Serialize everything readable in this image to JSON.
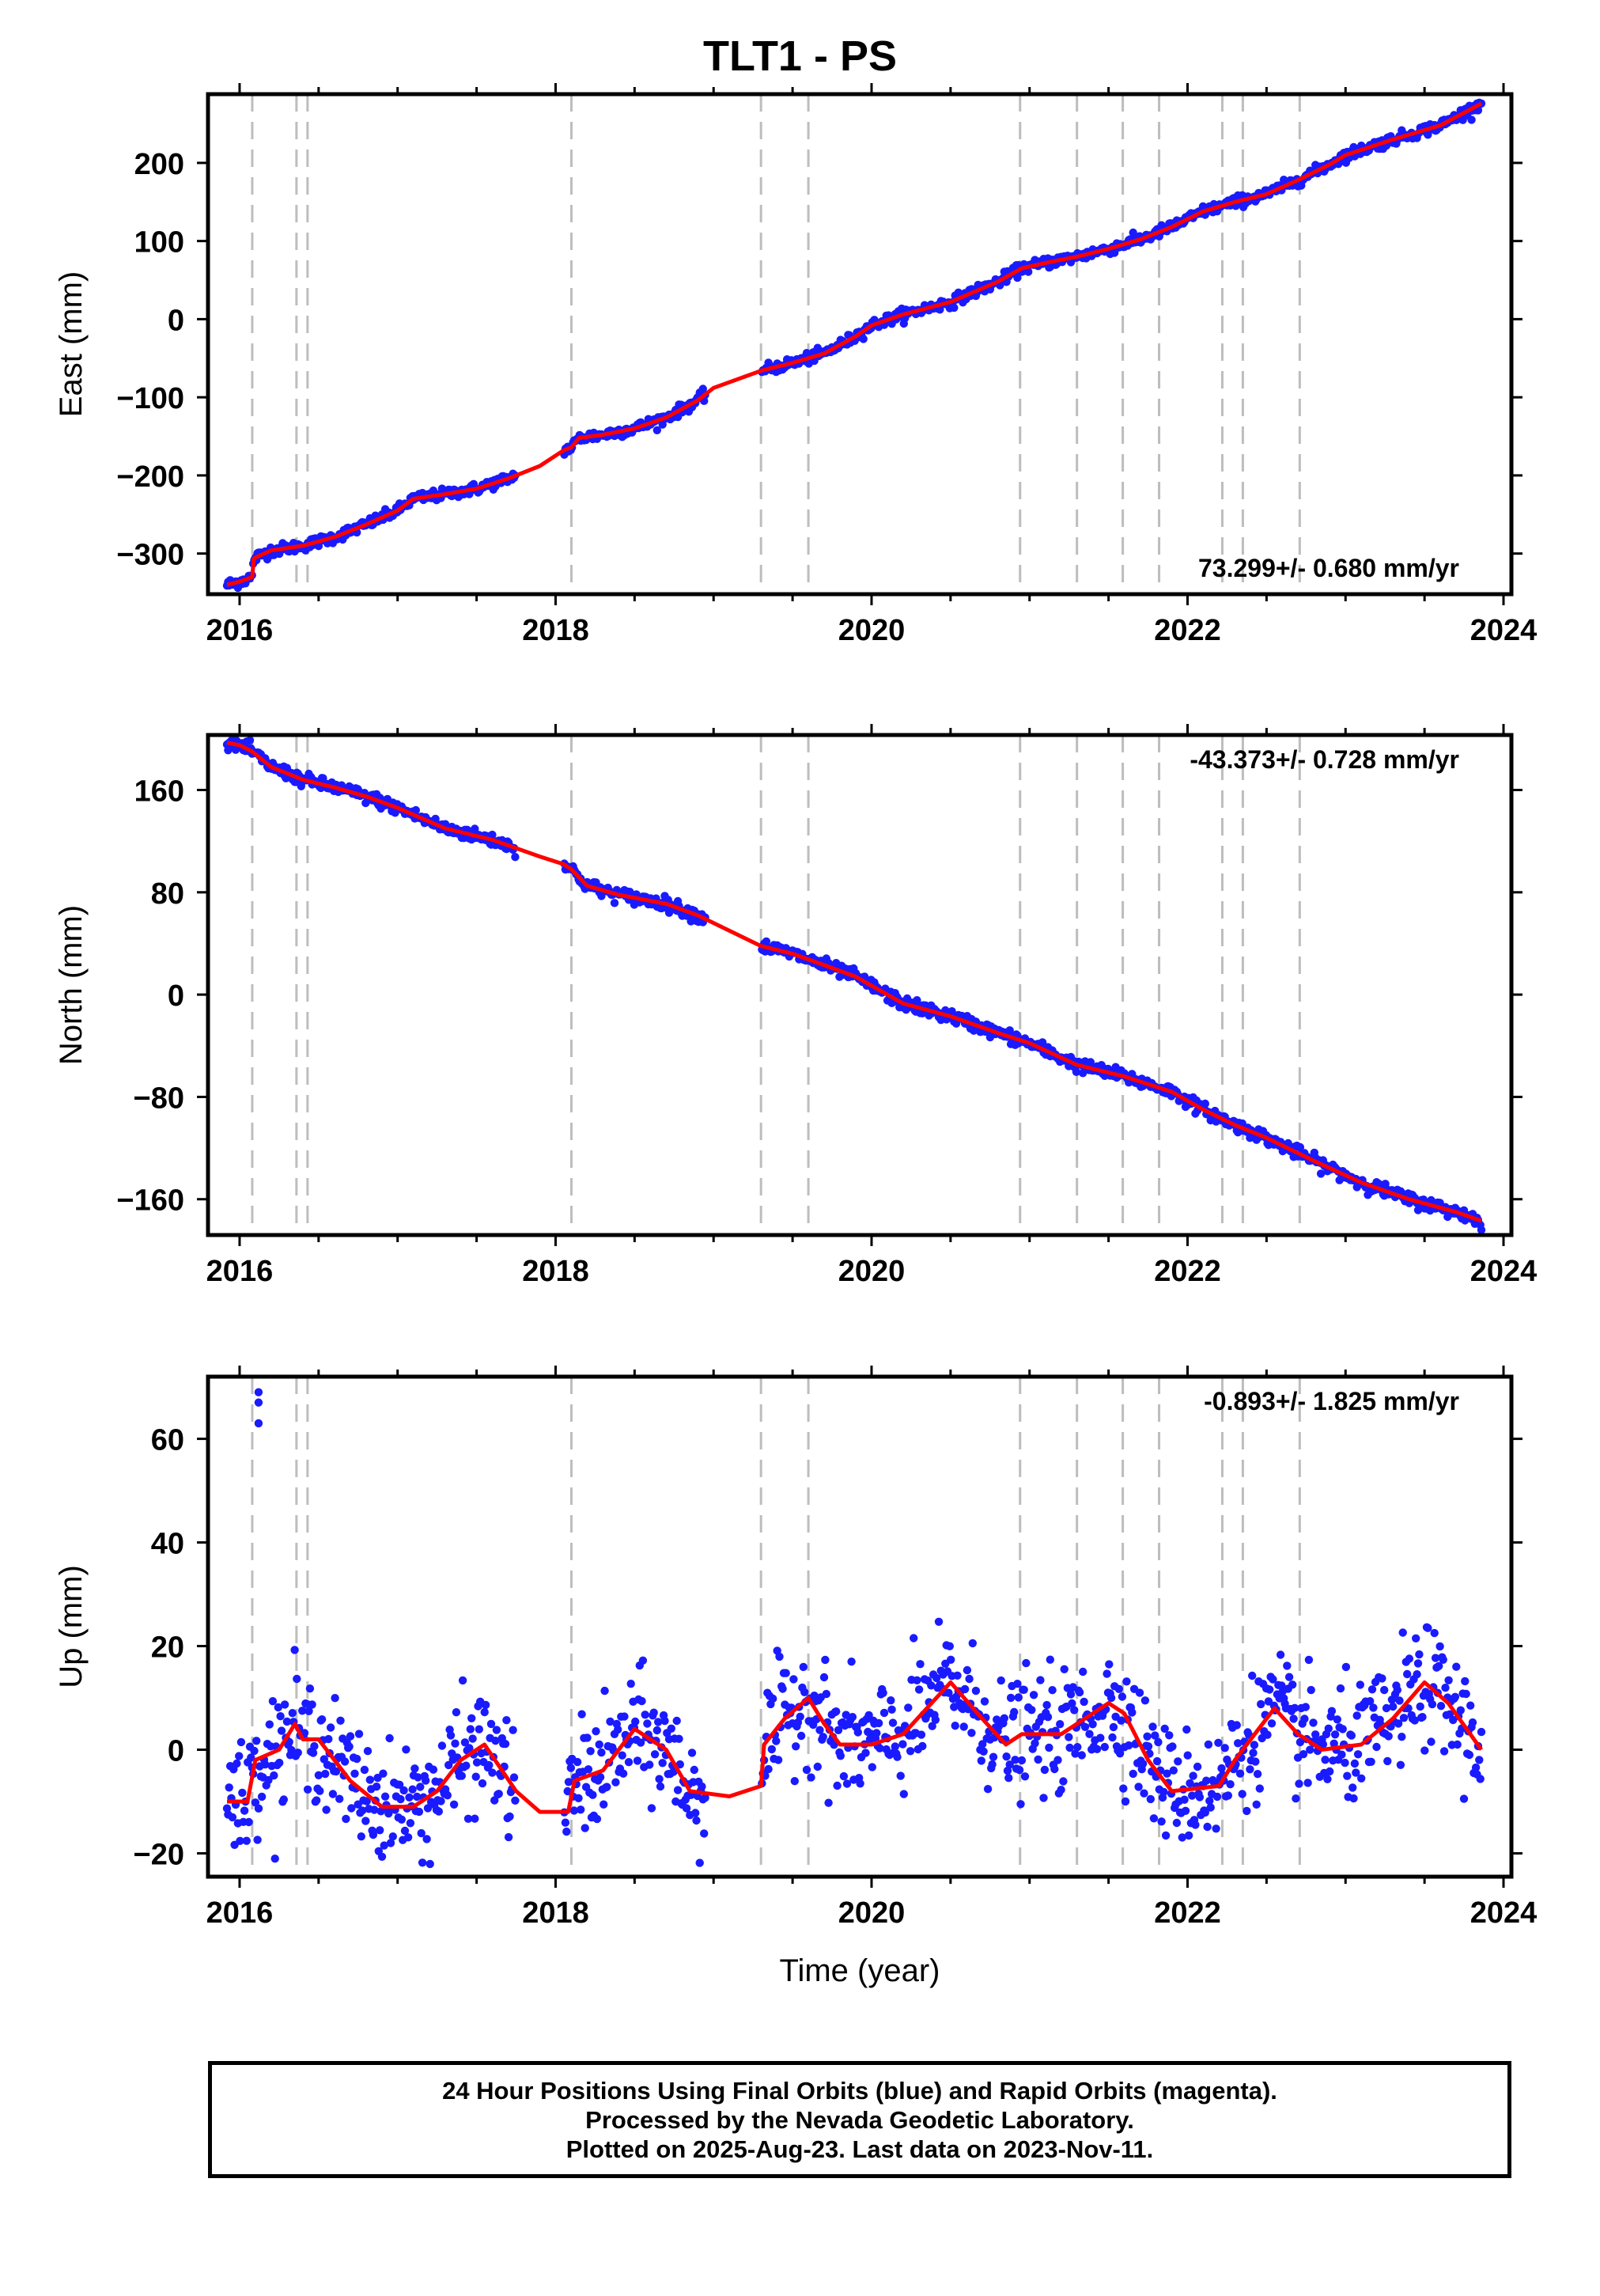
{
  "title": "TLT1 - PS",
  "colors": {
    "data_points": "#1a1aff",
    "model_line": "#ff0000",
    "offset_lines": "#bdbdbd",
    "frame": "#000000"
  },
  "offset_lines_years": [
    2016.08,
    2016.36,
    2016.43,
    2018.1,
    2019.3,
    2019.6,
    2020.94,
    2021.3,
    2021.59,
    2021.82,
    2022.22,
    2022.35,
    2022.71
  ],
  "chart_data": [
    {
      "type": "scatter",
      "id": "east",
      "ylabel": "East (mm)",
      "xlabel": "",
      "xlim": [
        2015.8,
        2024.05
      ],
      "ylim": [
        -352,
        288
      ],
      "xticks": [
        2016,
        2018,
        2020,
        2022,
        2024
      ],
      "yticks": [
        -300,
        -200,
        -100,
        0,
        100,
        200
      ],
      "rate_label": "73.299+/- 0.680 mm/yr",
      "series": [
        {
          "points": [
            [
              2015.92,
              -340
            ],
            [
              2016.0,
              -336
            ],
            [
              2016.08,
              -330
            ],
            [
              2016.09,
              -306
            ],
            [
              2016.2,
              -296
            ],
            [
              2016.4,
              -290
            ],
            [
              2016.6,
              -279
            ],
            [
              2016.8,
              -263
            ],
            [
              2017.0,
              -245
            ],
            [
              2017.1,
              -230
            ],
            [
              2017.3,
              -224
            ],
            [
              2017.5,
              -217
            ],
            [
              2017.7,
              -204
            ],
            [
              2017.9,
              -188
            ],
            [
              2018.05,
              -168
            ],
            [
              2018.1,
              -164
            ],
            [
              2018.15,
              -152
            ],
            [
              2018.3,
              -148
            ],
            [
              2018.5,
              -140
            ],
            [
              2018.7,
              -126
            ],
            [
              2018.9,
              -104
            ],
            [
              2019.0,
              -88
            ],
            [
              2019.3,
              -66
            ],
            [
              2019.5,
              -56
            ],
            [
              2019.7,
              -44
            ],
            [
              2019.9,
              -22
            ],
            [
              2020.0,
              -8
            ],
            [
              2020.2,
              6
            ],
            [
              2020.5,
              22
            ],
            [
              2020.8,
              48
            ],
            [
              2020.95,
              65
            ],
            [
              2021.1,
              72
            ],
            [
              2021.3,
              80
            ],
            [
              2021.5,
              90
            ],
            [
              2021.7,
              102
            ],
            [
              2021.9,
              118
            ],
            [
              2022.1,
              138
            ],
            [
              2022.3,
              150
            ],
            [
              2022.5,
              160
            ],
            [
              2022.7,
              178
            ],
            [
              2022.9,
              198
            ],
            [
              2023.0,
              210
            ],
            [
              2023.3,
              230
            ],
            [
              2023.6,
              248
            ],
            [
              2023.86,
              276
            ]
          ],
          "jitter": 3.5
        }
      ]
    },
    {
      "type": "scatter",
      "id": "north",
      "ylabel": "North (mm)",
      "xlabel": "",
      "xlim": [
        2015.8,
        2024.05
      ],
      "ylim": [
        -188,
        203
      ],
      "xticks": [
        2016,
        2018,
        2020,
        2022,
        2024
      ],
      "yticks": [
        -160,
        -80,
        0,
        80,
        160
      ],
      "rate_label": "-43.373+/- 0.728 mm/yr",
      "series": [
        {
          "points": [
            [
              2015.92,
              197
            ],
            [
              2016.0,
              195
            ],
            [
              2016.08,
              190
            ],
            [
              2016.2,
              178
            ],
            [
              2016.4,
              168
            ],
            [
              2016.6,
              162
            ],
            [
              2016.8,
              155
            ],
            [
              2017.0,
              146
            ],
            [
              2017.3,
              130
            ],
            [
              2017.6,
              121
            ],
            [
              2017.9,
              108
            ],
            [
              2018.05,
              102
            ],
            [
              2018.1,
              98
            ],
            [
              2018.2,
              85
            ],
            [
              2018.4,
              78
            ],
            [
              2018.7,
              71
            ],
            [
              2018.9,
              62
            ],
            [
              2019.0,
              56
            ],
            [
              2019.3,
              38
            ],
            [
              2019.5,
              32
            ],
            [
              2019.7,
              23
            ],
            [
              2019.9,
              14
            ],
            [
              2020.0,
              7
            ],
            [
              2020.2,
              -7
            ],
            [
              2020.5,
              -17
            ],
            [
              2020.8,
              -30
            ],
            [
              2021.0,
              -38
            ],
            [
              2021.3,
              -55
            ],
            [
              2021.6,
              -64
            ],
            [
              2021.9,
              -76
            ],
            [
              2022.1,
              -90
            ],
            [
              2022.3,
              -102
            ],
            [
              2022.5,
              -112
            ],
            [
              2022.8,
              -130
            ],
            [
              2023.1,
              -147
            ],
            [
              2023.4,
              -160
            ],
            [
              2023.7,
              -170
            ],
            [
              2023.86,
              -177
            ]
          ],
          "jitter": 2.5
        }
      ]
    },
    {
      "type": "scatter",
      "id": "up",
      "ylabel": "Up (mm)",
      "xlabel": "Time (year)",
      "xlim": [
        2015.8,
        2024.05
      ],
      "ylim": [
        -24.5,
        72
      ],
      "xticks": [
        2016,
        2018,
        2020,
        2022,
        2024
      ],
      "yticks": [
        -20,
        0,
        20,
        40,
        60
      ],
      "rate_label": "-0.893+/- 1.825 mm/yr",
      "series": [
        {
          "points": [
            [
              2015.92,
              -10
            ],
            [
              2016.05,
              -10
            ],
            [
              2016.1,
              -2
            ],
            [
              2016.25,
              0
            ],
            [
              2016.35,
              5
            ],
            [
              2016.4,
              2
            ],
            [
              2016.5,
              2
            ],
            [
              2016.7,
              -6
            ],
            [
              2016.9,
              -11
            ],
            [
              2017.1,
              -11
            ],
            [
              2017.25,
              -8
            ],
            [
              2017.4,
              -2
            ],
            [
              2017.55,
              1
            ],
            [
              2017.75,
              -8
            ],
            [
              2017.9,
              -12
            ],
            [
              2018.08,
              -12
            ],
            [
              2018.12,
              -6
            ],
            [
              2018.3,
              -4
            ],
            [
              2018.5,
              4
            ],
            [
              2018.7,
              0
            ],
            [
              2018.85,
              -8
            ],
            [
              2019.1,
              -9
            ],
            [
              2019.3,
              -7
            ],
            [
              2019.32,
              1
            ],
            [
              2019.45,
              6
            ],
            [
              2019.6,
              10
            ],
            [
              2019.7,
              5
            ],
            [
              2019.8,
              1
            ],
            [
              2020.0,
              1
            ],
            [
              2020.2,
              3
            ],
            [
              2020.5,
              13
            ],
            [
              2020.7,
              6
            ],
            [
              2020.85,
              1
            ],
            [
              2020.95,
              3
            ],
            [
              2021.2,
              3
            ],
            [
              2021.35,
              6
            ],
            [
              2021.5,
              9
            ],
            [
              2021.6,
              7
            ],
            [
              2021.75,
              -2
            ],
            [
              2021.9,
              -8
            ],
            [
              2022.2,
              -7
            ],
            [
              2022.3,
              -2
            ],
            [
              2022.45,
              4
            ],
            [
              2022.55,
              8
            ],
            [
              2022.7,
              3
            ],
            [
              2022.85,
              0
            ],
            [
              2023.1,
              1
            ],
            [
              2023.3,
              6
            ],
            [
              2023.5,
              13
            ],
            [
              2023.65,
              9
            ],
            [
              2023.86,
              0
            ]
          ],
          "jitter": 5.5
        }
      ],
      "outliers": [
        [
          2016.12,
          69
        ],
        [
          2016.12,
          67
        ],
        [
          2016.12,
          63
        ]
      ]
    }
  ],
  "footer": {
    "line1": "24 Hour Positions Using Final Orbits (blue) and Rapid Orbits (magenta).",
    "line2": "Processed by the Nevada Geodetic Laboratory.",
    "line3": "Plotted on 2025-Aug-23. Last data on 2023-Nov-11."
  }
}
